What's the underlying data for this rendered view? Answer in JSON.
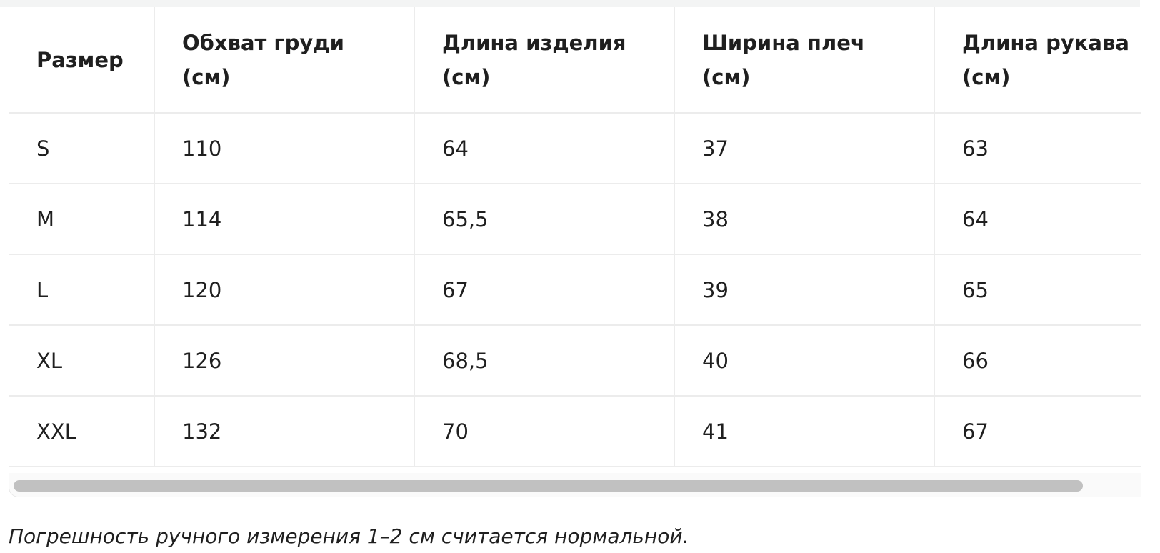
{
  "table": {
    "header": [
      "Размер",
      "Обхват груди (см)",
      "Длина изделия (см)",
      "Ширина плеч (см)",
      "Длина рукава (см)"
    ],
    "rows": [
      [
        "S",
        "110",
        "64",
        "37",
        "63"
      ],
      [
        "M",
        "114",
        "65,5",
        "38",
        "64"
      ],
      [
        "L",
        "120",
        "67",
        "39",
        "65"
      ],
      [
        "XL",
        "126",
        "68,5",
        "40",
        "66"
      ],
      [
        "XXL",
        "132",
        "70",
        "41",
        "67"
      ]
    ]
  },
  "caption": "Погрешность ручного измерения 1–2 см считается нормальной."
}
